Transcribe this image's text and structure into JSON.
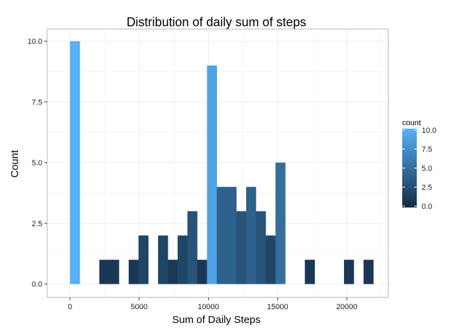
{
  "chart_data": {
    "type": "bar",
    "title": "Distribution of daily sum of steps",
    "xlabel": "Sum of Daily Steps",
    "ylabel": "Count",
    "xlim": [
      -1650,
      23000
    ],
    "ylim": [
      -0.55,
      10.5
    ],
    "xticks": [
      0,
      5000,
      10000,
      15000,
      20000
    ],
    "xtick_labels": [
      "0",
      "5000",
      "10000",
      "15000",
      "20000"
    ],
    "yticks": [
      0,
      2.5,
      5,
      7.5,
      10
    ],
    "ytick_labels": [
      "0.0",
      "2.5",
      "5.0",
      "7.5",
      "10.0"
    ],
    "bin_width": 707,
    "bin_starts": [
      0,
      2121,
      2828,
      4242,
      4949,
      6363,
      7070,
      7777,
      8484,
      9191,
      9898,
      10605,
      11312,
      12019,
      12726,
      13433,
      14140,
      14847,
      16968,
      19796,
      21210
    ],
    "counts": [
      10,
      1,
      1,
      1,
      2,
      2,
      1,
      2,
      3,
      1,
      9,
      4,
      4,
      3,
      4,
      3,
      2,
      5,
      1,
      1,
      1
    ],
    "grid": true,
    "legend": {
      "title": "count",
      "position": "right",
      "labels": [
        "10.0",
        "7.5",
        "5.0",
        "2.5",
        "0.0"
      ],
      "values": [
        10,
        7.5,
        5,
        2.5,
        0
      ],
      "color_low": "#132B43",
      "color_high": "#56B1F7"
    }
  }
}
